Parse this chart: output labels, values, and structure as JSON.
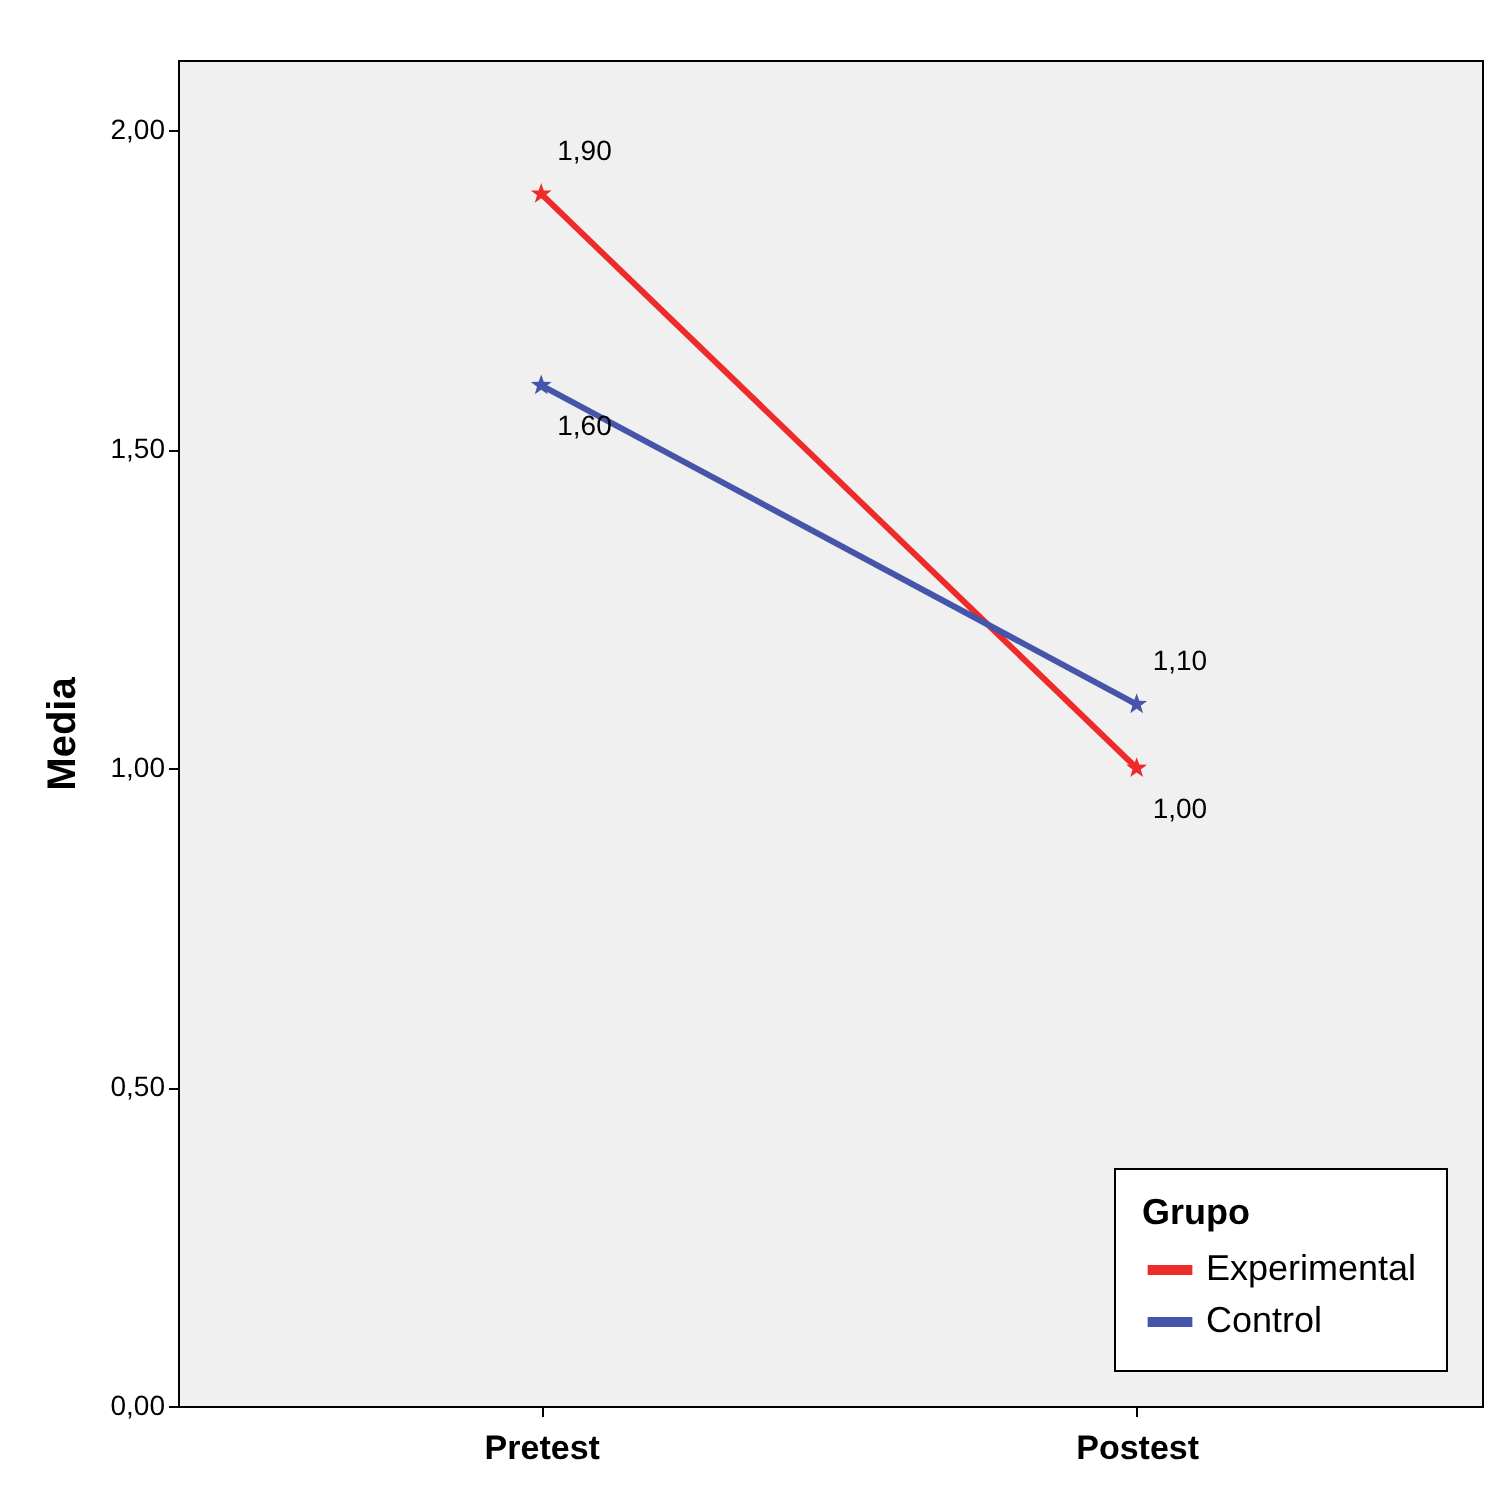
{
  "chart_data": {
    "type": "line",
    "ylabel": "Media",
    "categories": [
      "Pretest",
      "Postest"
    ],
    "series": [
      {
        "name": "Experimental",
        "color": "#ee2b2b",
        "values": [
          1.9,
          1.0
        ],
        "value_labels": [
          "1,90",
          "1,00"
        ]
      },
      {
        "name": "Control",
        "color": "#4455aa",
        "values": [
          1.6,
          1.1
        ],
        "value_labels": [
          "1,60",
          "1,10"
        ]
      }
    ],
    "ylim": [
      0,
      2.11
    ],
    "yticks": [
      {
        "value": 0,
        "label": "0,00"
      },
      {
        "value": 0.5,
        "label": "0,50"
      },
      {
        "value": 1,
        "label": "1,00"
      },
      {
        "value": 1.5,
        "label": "1,50"
      },
      {
        "value": 2,
        "label": "2,00"
      }
    ],
    "legend_title": "Grupo",
    "legend": "bottom right",
    "grid": false,
    "marker": "star",
    "line_style": "solid"
  }
}
